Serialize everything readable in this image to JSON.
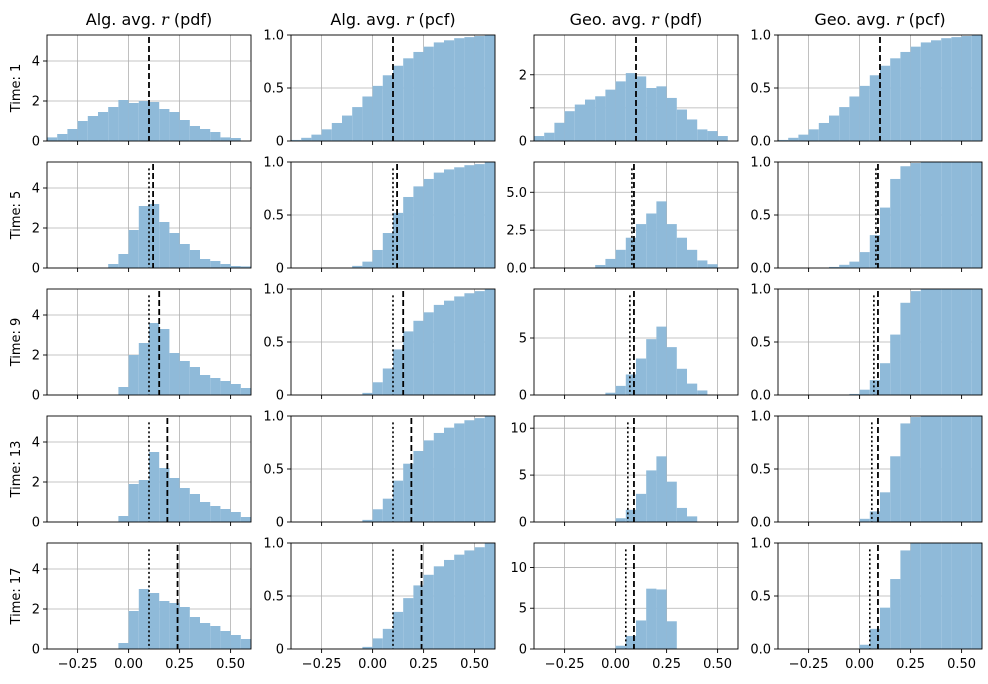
{
  "figure": {
    "column_titles": [
      {
        "prefix": "Alg. avg. ",
        "var": "r",
        "suffix": " (pdf)"
      },
      {
        "prefix": "Alg. avg. ",
        "var": "r",
        "suffix": " (pcf)"
      },
      {
        "prefix": "Geo. avg. ",
        "var": "r",
        "suffix": " (pdf)"
      },
      {
        "prefix": "Geo. avg. ",
        "var": "r",
        "suffix": " (pcf)"
      }
    ],
    "row_labels": [
      "Time: 1",
      "Time: 5",
      "Time: 9",
      "Time: 13",
      "Time: 17"
    ]
  },
  "chart_data": {
    "type": "bar",
    "description_kind": "grid of histograms (5 rows x 4 columns)",
    "bar_color": "#8fbad9",
    "grid": true,
    "xlim": [
      -0.4,
      0.6
    ],
    "x_ticks": [
      -0.25,
      0.0,
      0.25,
      0.5
    ],
    "x_tick_labels": [
      "−0.25",
      "0.00",
      "0.25",
      "0.50"
    ],
    "bin_edges": [
      -0.4,
      -0.35,
      -0.3,
      -0.25,
      -0.2,
      -0.15,
      -0.1,
      -0.05,
      0.0,
      0.05,
      0.1,
      0.15,
      0.2,
      0.25,
      0.3,
      0.35,
      0.4,
      0.45,
      0.5,
      0.55,
      0.6
    ],
    "panels": [
      {
        "row": 0,
        "col": 0,
        "ylim": [
          0,
          5.3
        ],
        "y_ticks": [
          0,
          2,
          4
        ],
        "y_tick_labels": [
          "0",
          "2",
          "4"
        ],
        "values": [
          0.18,
          0.35,
          0.6,
          1.0,
          1.25,
          1.45,
          1.7,
          2.05,
          1.9,
          2.0,
          1.95,
          1.6,
          1.45,
          1.05,
          0.75,
          0.6,
          0.45,
          0.18,
          0.15,
          0
        ],
        "mean_line": 0.1,
        "median_line": null
      },
      {
        "row": 0,
        "col": 1,
        "ylim": [
          0,
          1.0
        ],
        "y_ticks": [
          0,
          0.5,
          1.0
        ],
        "y_tick_labels": [
          "0",
          "0.5",
          "1.0"
        ],
        "values": [
          0.01,
          0.03,
          0.06,
          0.11,
          0.17,
          0.24,
          0.32,
          0.42,
          0.52,
          0.62,
          0.71,
          0.78,
          0.84,
          0.89,
          0.93,
          0.95,
          0.97,
          0.98,
          0.99,
          1.0
        ],
        "mean_line": 0.1,
        "median_line": null
      },
      {
        "row": 0,
        "col": 2,
        "ylim": [
          0,
          3.2
        ],
        "y_ticks": [
          0,
          1,
          2
        ],
        "y_tick_labels": [
          "0",
          "",
          "2"
        ],
        "values": [
          0.15,
          0.25,
          0.55,
          0.9,
          1.1,
          1.25,
          1.35,
          1.55,
          1.8,
          2.05,
          1.95,
          1.6,
          1.65,
          1.3,
          0.95,
          0.65,
          0.35,
          0.3,
          0.15,
          0
        ],
        "mean_line": 0.1,
        "median_line": null
      },
      {
        "row": 0,
        "col": 3,
        "ylim": [
          0,
          1.0
        ],
        "y_ticks": [
          0,
          0.5,
          1.0
        ],
        "y_tick_labels": [
          "0.0",
          "0.5",
          "1.0"
        ],
        "values": [
          0.01,
          0.03,
          0.06,
          0.11,
          0.17,
          0.24,
          0.32,
          0.42,
          0.52,
          0.62,
          0.71,
          0.78,
          0.84,
          0.89,
          0.93,
          0.95,
          0.97,
          0.98,
          0.99,
          1.0
        ],
        "mean_line": 0.1,
        "median_line": null
      },
      {
        "row": 1,
        "col": 0,
        "ylim": [
          0,
          5.3
        ],
        "y_ticks": [
          0,
          2,
          4
        ],
        "y_tick_labels": [
          "0",
          "2",
          "4"
        ],
        "values": [
          0,
          0,
          0,
          0,
          0,
          0,
          0.2,
          0.7,
          1.9,
          3.1,
          3.2,
          2.3,
          1.75,
          1.2,
          0.9,
          0.45,
          0.35,
          0.2,
          0.1,
          0.08
        ],
        "mean_line": 0.12,
        "median_line": 0.1
      },
      {
        "row": 1,
        "col": 1,
        "ylim": [
          0,
          1.0
        ],
        "y_ticks": [
          0,
          0.5,
          1.0
        ],
        "y_tick_labels": [
          "0",
          "0.5",
          "1.0"
        ],
        "values": [
          0,
          0,
          0,
          0,
          0,
          0,
          0.02,
          0.06,
          0.17,
          0.33,
          0.52,
          0.67,
          0.77,
          0.84,
          0.9,
          0.93,
          0.95,
          0.97,
          0.98,
          1.0
        ],
        "mean_line": 0.12,
        "median_line": 0.1
      },
      {
        "row": 1,
        "col": 2,
        "ylim": [
          0,
          7.0
        ],
        "y_ticks": [
          0,
          2.5,
          5.0
        ],
        "y_tick_labels": [
          "0.0",
          "2.5",
          "5.0"
        ],
        "values": [
          0,
          0,
          0,
          0,
          0,
          0,
          0.2,
          0.6,
          1.2,
          2.0,
          2.9,
          3.6,
          4.4,
          2.9,
          2.0,
          1.2,
          0.5,
          0.25,
          0,
          0
        ],
        "mean_line": 0.09,
        "median_line": 0.08
      },
      {
        "row": 1,
        "col": 3,
        "ylim": [
          0,
          1.0
        ],
        "y_ticks": [
          0,
          0.5,
          1.0
        ],
        "y_tick_labels": [
          "0.0",
          "0.5",
          "1.0"
        ],
        "values": [
          0,
          0,
          0,
          0,
          0,
          0.01,
          0.03,
          0.06,
          0.15,
          0.31,
          0.57,
          0.84,
          0.96,
          0.99,
          1.0,
          1.0,
          1.0,
          1.0,
          1.0,
          1.0
        ],
        "mean_line": 0.09,
        "median_line": 0.08
      },
      {
        "row": 2,
        "col": 0,
        "ylim": [
          0,
          5.3
        ],
        "y_ticks": [
          0,
          2,
          4
        ],
        "y_tick_labels": [
          "0",
          "2",
          "4"
        ],
        "values": [
          0,
          0,
          0,
          0,
          0,
          0,
          0,
          0.4,
          2.0,
          2.6,
          3.6,
          3.3,
          2.1,
          1.7,
          1.4,
          1.0,
          0.85,
          0.7,
          0.55,
          0.35
        ],
        "mean_line": 0.15,
        "median_line": 0.1
      },
      {
        "row": 2,
        "col": 1,
        "ylim": [
          0,
          1.0
        ],
        "y_ticks": [
          0,
          0.5,
          1.0
        ],
        "y_tick_labels": [
          "0",
          "0.5",
          "1.0"
        ],
        "values": [
          0,
          0,
          0,
          0,
          0,
          0,
          0,
          0.02,
          0.12,
          0.25,
          0.43,
          0.6,
          0.7,
          0.78,
          0.85,
          0.89,
          0.93,
          0.96,
          0.98,
          1.0
        ],
        "mean_line": 0.15,
        "median_line": 0.1
      },
      {
        "row": 2,
        "col": 2,
        "ylim": [
          0,
          9.3
        ],
        "y_ticks": [
          0,
          5
        ],
        "y_tick_labels": [
          "0",
          "5"
        ],
        "values": [
          0,
          0,
          0,
          0,
          0,
          0,
          0,
          0.2,
          0.8,
          1.8,
          3.2,
          4.9,
          6.0,
          4.2,
          2.3,
          1.0,
          0.4,
          0,
          0,
          0
        ],
        "mean_line": 0.09,
        "median_line": 0.07
      },
      {
        "row": 2,
        "col": 3,
        "ylim": [
          0,
          1.0
        ],
        "y_ticks": [
          0,
          0.5,
          1.0
        ],
        "y_tick_labels": [
          "0.0",
          "0.5",
          "1.0"
        ],
        "values": [
          0,
          0,
          0,
          0,
          0,
          0,
          0,
          0.01,
          0.05,
          0.14,
          0.3,
          0.57,
          0.87,
          0.98,
          1.0,
          1.0,
          1.0,
          1.0,
          1.0,
          1.0
        ],
        "mean_line": 0.09,
        "median_line": 0.07
      },
      {
        "row": 3,
        "col": 0,
        "ylim": [
          0,
          5.3
        ],
        "y_ticks": [
          0,
          2,
          4
        ],
        "y_tick_labels": [
          "0",
          "2",
          "4"
        ],
        "values": [
          0,
          0,
          0,
          0,
          0,
          0,
          0,
          0.3,
          1.9,
          2.1,
          3.5,
          2.7,
          2.2,
          1.7,
          1.4,
          1.0,
          0.8,
          0.65,
          0.5,
          0.25
        ],
        "mean_line": 0.19,
        "median_line": 0.1
      },
      {
        "row": 3,
        "col": 1,
        "ylim": [
          0,
          1.0
        ],
        "y_ticks": [
          0,
          0.5,
          1.0
        ],
        "y_tick_labels": [
          "0",
          "0.5",
          "1.0"
        ],
        "values": [
          0,
          0,
          0,
          0,
          0,
          0,
          0,
          0.02,
          0.12,
          0.22,
          0.39,
          0.55,
          0.67,
          0.77,
          0.84,
          0.89,
          0.93,
          0.96,
          0.98,
          1.0
        ],
        "mean_line": 0.19,
        "median_line": 0.1
      },
      {
        "row": 3,
        "col": 2,
        "ylim": [
          0,
          11.3
        ],
        "y_ticks": [
          0,
          5,
          10
        ],
        "y_tick_labels": [
          "0",
          "5",
          "10"
        ],
        "values": [
          0,
          0,
          0,
          0,
          0,
          0,
          0,
          0,
          0.4,
          1.3,
          3.0,
          5.5,
          7.0,
          4.3,
          1.5,
          0.6,
          0,
          0,
          0,
          0
        ],
        "mean_line": 0.09,
        "median_line": 0.06
      },
      {
        "row": 3,
        "col": 3,
        "ylim": [
          0,
          1.0
        ],
        "y_ticks": [
          0,
          0.5,
          1.0
        ],
        "y_tick_labels": [
          "0.0",
          "0.5",
          "1.0"
        ],
        "values": [
          0,
          0,
          0,
          0,
          0,
          0,
          0,
          0,
          0.03,
          0.1,
          0.28,
          0.62,
          0.93,
          0.99,
          1.0,
          1.0,
          1.0,
          1.0,
          1.0,
          1.0
        ],
        "mean_line": 0.09,
        "median_line": 0.06
      },
      {
        "row": 4,
        "col": 0,
        "ylim": [
          0,
          5.3
        ],
        "y_ticks": [
          0,
          2,
          4
        ],
        "y_tick_labels": [
          "0",
          "2",
          "4"
        ],
        "values": [
          0,
          0,
          0,
          0,
          0,
          0,
          0,
          0.3,
          1.9,
          3.0,
          2.8,
          2.4,
          2.3,
          2.1,
          1.6,
          1.3,
          1.15,
          0.9,
          0.7,
          0.5
        ],
        "mean_line": 0.24,
        "median_line": 0.1
      },
      {
        "row": 4,
        "col": 1,
        "ylim": [
          0,
          1.0
        ],
        "y_ticks": [
          0,
          0.5,
          1.0
        ],
        "y_tick_labels": [
          "0",
          "0.5",
          "1.0"
        ],
        "values": [
          0,
          0,
          0,
          0,
          0,
          0,
          0,
          0.02,
          0.1,
          0.19,
          0.35,
          0.48,
          0.6,
          0.7,
          0.78,
          0.84,
          0.89,
          0.93,
          0.96,
          1.0
        ],
        "mean_line": 0.24,
        "median_line": 0.1
      },
      {
        "row": 4,
        "col": 2,
        "ylim": [
          0,
          13.0
        ],
        "y_ticks": [
          0,
          5,
          10
        ],
        "y_tick_labels": [
          "0",
          "5",
          "10"
        ],
        "values": [
          0,
          0,
          0,
          0,
          0,
          0,
          0,
          0,
          0.4,
          1.6,
          3.5,
          7.4,
          7.3,
          3.4,
          0,
          0,
          0,
          0,
          0,
          0
        ],
        "mean_line": 0.09,
        "median_line": 0.05
      },
      {
        "row": 4,
        "col": 3,
        "ylim": [
          0,
          1.0
        ],
        "y_ticks": [
          0,
          0.5,
          1.0
        ],
        "y_tick_labels": [
          "0.0",
          "0.5",
          "1.0"
        ],
        "values": [
          0,
          0,
          0,
          0,
          0,
          0,
          0,
          0,
          0.04,
          0.19,
          0.39,
          0.66,
          0.93,
          1.0,
          1.0,
          1.0,
          1.0,
          1.0,
          1.0,
          1.0
        ],
        "mean_line": 0.09,
        "median_line": 0.05
      }
    ]
  }
}
